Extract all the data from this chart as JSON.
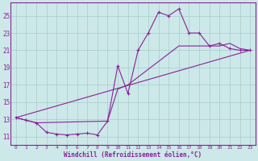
{
  "xlabel": "Windchill (Refroidissement éolien,°C)",
  "background_color": "#cce8e8",
  "grid_color": "#a8cccc",
  "line_color": "#882299",
  "xlim": [
    -0.5,
    23.5
  ],
  "ylim": [
    10.0,
    26.5
  ],
  "xticks": [
    0,
    1,
    2,
    3,
    4,
    5,
    6,
    7,
    8,
    9,
    10,
    11,
    12,
    13,
    14,
    15,
    16,
    17,
    18,
    19,
    20,
    21,
    22,
    23
  ],
  "yticks": [
    11,
    13,
    15,
    17,
    19,
    21,
    23,
    25
  ],
  "line1_x": [
    0,
    1,
    2,
    3,
    4,
    5,
    6,
    7,
    8,
    9,
    10,
    11,
    12,
    13,
    14,
    15,
    16,
    17,
    18,
    19,
    20,
    21,
    22,
    23
  ],
  "line1_y": [
    13.2,
    12.9,
    12.6,
    11.5,
    11.3,
    11.2,
    11.3,
    11.4,
    11.2,
    12.8,
    19.2,
    16.0,
    21.0,
    23.0,
    25.4,
    25.0,
    25.8,
    23.0,
    23.0,
    21.5,
    21.8,
    21.2,
    21.0,
    21.0
  ],
  "line2_x": [
    0,
    23
  ],
  "line2_y": [
    13.2,
    21.0
  ],
  "line3_x": [
    0,
    1,
    2,
    9,
    10,
    11,
    16,
    20,
    21,
    22,
    23
  ],
  "line3_y": [
    13.2,
    12.9,
    12.6,
    12.8,
    16.5,
    17.0,
    21.5,
    21.5,
    21.8,
    21.2,
    21.0
  ]
}
